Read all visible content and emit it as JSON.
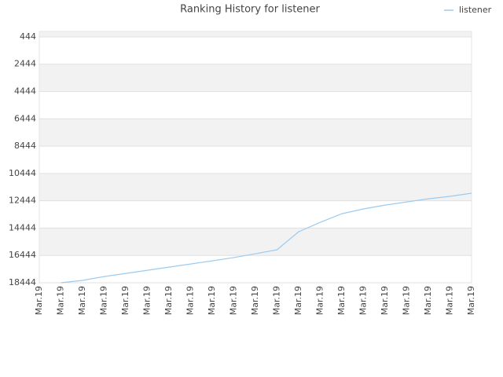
{
  "chart_data": {
    "type": "line",
    "title": "Ranking History for listener",
    "categories": [
      "Mar.19",
      "Mar.19",
      "Mar.19",
      "Mar.19",
      "Mar.19",
      "Mar.19",
      "Mar.19",
      "Mar.19",
      "Mar.19",
      "Mar.19",
      "Mar.19",
      "Mar.19",
      "Mar.19",
      "Mar.19",
      "Mar.19",
      "Mar.19",
      "Mar.19",
      "Mar.19",
      "Mar.19",
      "Mar.19",
      "Mar.19"
    ],
    "series": [
      {
        "name": "listener",
        "color": "#9ccbf0",
        "values": [
          null,
          18444,
          18270,
          17990,
          17760,
          17530,
          17300,
          17070,
          16840,
          16600,
          16320,
          16030,
          14710,
          14020,
          13390,
          13040,
          12760,
          12530,
          12300,
          12120,
          11890
        ]
      }
    ],
    "ylim": [
      44,
      18444
    ],
    "y_inverted": true,
    "yticks": [
      444,
      2444,
      4444,
      6444,
      8444,
      10444,
      12444,
      14444,
      16444,
      18444
    ],
    "grid": true,
    "legend": "top-right"
  }
}
